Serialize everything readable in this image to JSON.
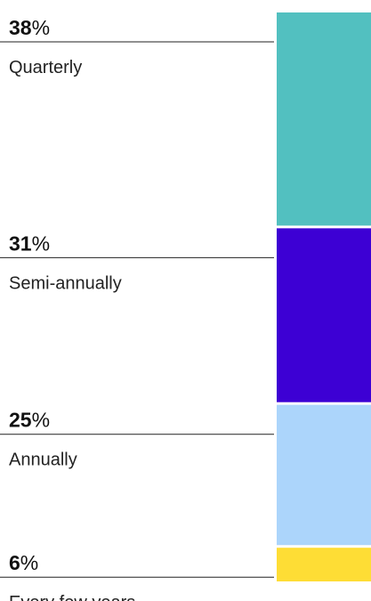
{
  "chart_data": {
    "type": "stacked-bar",
    "categories": [
      "Quarterly",
      "Semi-annually",
      "Annually",
      "Every few years"
    ],
    "values": [
      38,
      31,
      25,
      6
    ],
    "value_labels": [
      "38%",
      "31%",
      "25%",
      "6%"
    ],
    "colors": [
      "#52c0c0",
      "#3d00d4",
      "#acd5fb",
      "#fedd35"
    ]
  }
}
